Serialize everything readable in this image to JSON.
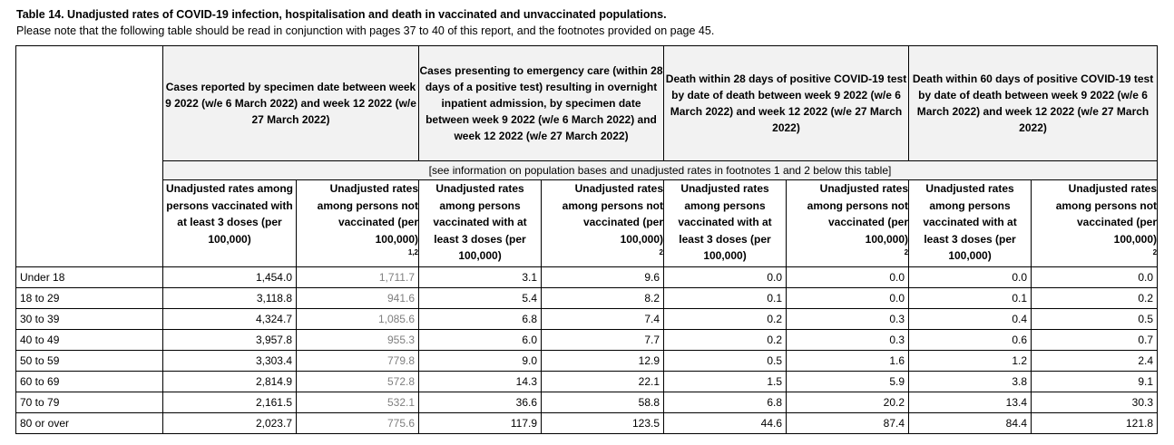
{
  "title": "Table 14. Unadjusted rates of COVID-19 infection, hospitalisation and death in vaccinated and unvaccinated populations.",
  "note": "Please note that the following table should be read in conjunction with pages 37 to 40 of this report, and the footnotes provided on page 45.",
  "groups": [
    "Cases reported by specimen date between week 9 2022 (w/e 6 March 2022) and week 12 2022 (w/e 27 March 2022)",
    "Cases presenting to emergency care (within 28 days of a positive test) resulting in overnight inpatient admission, by specimen date between week 9 2022 (w/e 6 March 2022) and week 12 2022 (w/e 27 March 2022)",
    "Death within 28 days of positive COVID-19 test by date of death between week 9 2022 (w/e 6 March 2022) and week 12 2022 (w/e 27 March 2022)",
    "Death within 60 days of positive COVID-19 test by date of death between week 9 2022 (w/e 6 March 2022) and week 12 2022 (w/e 27 March 2022)"
  ],
  "footnote_row": "[see information on population bases and unadjusted rates in footnotes 1 and 2 below this table]",
  "subheaders": {
    "vaccinated": "Unadjusted rates among persons vaccinated with at least 3 doses (per 100,000)",
    "unvaccinated": "Unadjusted rates among persons not vaccinated (per 100,000)",
    "unvaccinated_sup": [
      "1,2",
      "2",
      "2",
      "2"
    ]
  },
  "rows": [
    {
      "age": "Under 18",
      "values": [
        "1,454.0",
        "1,711.7",
        "3.1",
        "9.6",
        "0.0",
        "0.0",
        "0.0",
        "0.0"
      ]
    },
    {
      "age": "18 to 29",
      "values": [
        "3,118.8",
        "941.6",
        "5.4",
        "8.2",
        "0.1",
        "0.0",
        "0.1",
        "0.2"
      ]
    },
    {
      "age": "30 to 39",
      "values": [
        "4,324.7",
        "1,085.6",
        "6.8",
        "7.4",
        "0.2",
        "0.3",
        "0.4",
        "0.5"
      ]
    },
    {
      "age": "40 to 49",
      "values": [
        "3,957.8",
        "955.3",
        "6.0",
        "7.7",
        "0.2",
        "0.3",
        "0.6",
        "0.7"
      ]
    },
    {
      "age": "50 to 59",
      "values": [
        "3,303.4",
        "779.8",
        "9.0",
        "12.9",
        "0.5",
        "1.6",
        "1.2",
        "2.4"
      ]
    },
    {
      "age": "60 to 69",
      "values": [
        "2,814.9",
        "572.8",
        "14.3",
        "22.1",
        "1.5",
        "5.9",
        "3.8",
        "9.1"
      ]
    },
    {
      "age": "70 to 79",
      "values": [
        "2,161.5",
        "532.1",
        "36.6",
        "58.8",
        "6.8",
        "20.2",
        "13.4",
        "30.3"
      ]
    },
    {
      "age": "80 or over",
      "values": [
        "2,023.7",
        "775.6",
        "117.9",
        "123.5",
        "44.6",
        "87.4",
        "84.4",
        "121.8"
      ]
    }
  ],
  "colors": {
    "header_bg": "#f2f2f2",
    "greyed_value": "#7f7f7f"
  }
}
